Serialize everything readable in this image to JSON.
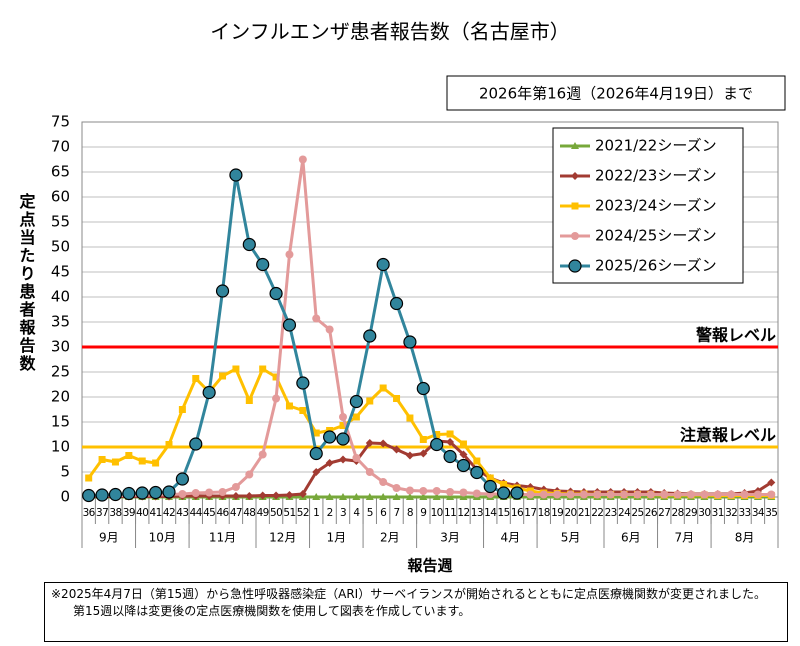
{
  "chart_data": {
    "type": "line",
    "title": "インフルエンザ患者報告数（名古屋市）",
    "subtitle": "2026年第16週（2026年4月19日）まで",
    "y_label": "定点当たり患者報告数",
    "x_label": "報告週",
    "categories": [
      "36",
      "37",
      "38",
      "39",
      "40",
      "41",
      "42",
      "43",
      "44",
      "45",
      "46",
      "47",
      "48",
      "49",
      "50",
      "51",
      "52",
      "1",
      "2",
      "3",
      "4",
      "5",
      "6",
      "7",
      "8",
      "9",
      "10",
      "11",
      "12",
      "13",
      "14",
      "15",
      "16",
      "17",
      "18",
      "19",
      "20",
      "21",
      "22",
      "23",
      "24",
      "25",
      "26",
      "27",
      "28",
      "29",
      "30",
      "31",
      "32",
      "33",
      "34",
      "35"
    ],
    "month_groups": [
      {
        "label": "9月",
        "weeks": 4
      },
      {
        "label": "10月",
        "weeks": 4
      },
      {
        "label": "11月",
        "weeks": 5
      },
      {
        "label": "12月",
        "weeks": 4
      },
      {
        "label": "1月",
        "weeks": 4
      },
      {
        "label": "2月",
        "weeks": 4
      },
      {
        "label": "3月",
        "weeks": 5
      },
      {
        "label": "4月",
        "weeks": 4
      },
      {
        "label": "5月",
        "weeks": 5
      },
      {
        "label": "6月",
        "weeks": 4
      },
      {
        "label": "7月",
        "weeks": 4
      },
      {
        "label": "8月",
        "weeks": 5
      }
    ],
    "ylim": [
      0,
      75
    ],
    "yticks": [
      0,
      5,
      10,
      15,
      20,
      25,
      30,
      35,
      40,
      45,
      50,
      55,
      60,
      65,
      70,
      75
    ],
    "grid": true,
    "legend": "upper right",
    "reference_lines": [
      {
        "label": "警報レベル",
        "value": 30,
        "color": "#ff0000"
      },
      {
        "label": "注意報レベル",
        "value": 10,
        "color": "#ffc000"
      }
    ],
    "series": [
      {
        "name": "2021/22シーズン",
        "color": "#77a83a",
        "marker": "triangle",
        "values": [
          0,
          0,
          0,
          0,
          0,
          0,
          0,
          0,
          0,
          0,
          0,
          0,
          0,
          0,
          0,
          0,
          0,
          0,
          0,
          0,
          0,
          0,
          0,
          0,
          0,
          0,
          0,
          0,
          0,
          0,
          0,
          0,
          0,
          0,
          0,
          0,
          0,
          0,
          0,
          0,
          0,
          0,
          0,
          0,
          0,
          0,
          0,
          0,
          0,
          0,
          0,
          0
        ]
      },
      {
        "name": "2022/23シーズン",
        "color": "#a23b32",
        "marker": "diamond",
        "values": [
          0.1,
          0.1,
          0.1,
          0.1,
          0.1,
          0.1,
          0.1,
          0.2,
          0.2,
          0.2,
          0.2,
          0.2,
          0.2,
          0.3,
          0.3,
          0.4,
          0.6,
          5,
          6.8,
          7.5,
          7.2,
          10.8,
          10.7,
          9.5,
          8.3,
          8.7,
          11.2,
          11,
          8.5,
          5.5,
          3.8,
          2.8,
          2.3,
          2,
          1.5,
          1.2,
          1.1,
          1,
          1,
          1,
          1,
          1,
          1,
          0.8,
          0.7,
          0.6,
          0.6,
          0.6,
          0.6,
          0.8,
          1.2,
          2.9
        ]
      },
      {
        "name": "2023/24シーズン",
        "color": "#ffc000",
        "marker": "square",
        "values": [
          3.8,
          7.5,
          7,
          8.3,
          7.2,
          6.8,
          10.5,
          17.5,
          23.7,
          21,
          24.2,
          25.6,
          19.3,
          25.6,
          24,
          18.2,
          17.3,
          12.8,
          13.3,
          14.3,
          16,
          19.2,
          21.8,
          19.7,
          15.8,
          11.5,
          12.5,
          12.6,
          10.6,
          7.2,
          3.8,
          2.5,
          1.8,
          1.2,
          0.8,
          0.7,
          0.6,
          0.6,
          0.5,
          0.5,
          0.5,
          0.5,
          0.5,
          0.4,
          0.4,
          0.4,
          0.4,
          0.3,
          0.3,
          0.3,
          0.3,
          0.3
        ]
      },
      {
        "name": "2024/25シーズン",
        "color": "#e39a9a",
        "marker": "circle",
        "values": [
          0.3,
          0.3,
          0.3,
          0.3,
          0.4,
          0.4,
          0.5,
          0.6,
          0.8,
          0.9,
          1,
          2,
          4.5,
          8.5,
          19.7,
          48.5,
          67.5,
          35.7,
          33.5,
          16,
          7.8,
          5,
          3,
          1.8,
          1.3,
          1.2,
          1.2,
          1,
          0.9,
          0.7,
          0.6,
          0.6,
          0.5,
          0.5,
          0.5,
          0.5,
          0.5,
          0.5,
          0.5,
          0.5,
          0.5,
          0.5,
          0.5,
          0.5,
          0.5,
          0.5,
          0.5,
          0.5,
          0.5,
          0.5,
          0.5,
          0.5
        ]
      },
      {
        "name": "2025/26シーズン",
        "color": "#31859c",
        "marker": "circle-outlined",
        "values": [
          0.3,
          0.4,
          0.5,
          0.7,
          0.8,
          0.9,
          1,
          3.6,
          10.6,
          20.9,
          41.2,
          64.4,
          50.5,
          46.5,
          40.7,
          34.4,
          22.8,
          8.7,
          12,
          11.6,
          19.1,
          32.2,
          46.5,
          38.7,
          31,
          21.7,
          10.5,
          8.1,
          6.3,
          4.9,
          2.1,
          0.8,
          0.8,
          null,
          null,
          null,
          null,
          null,
          null,
          null,
          null,
          null,
          null,
          null,
          null,
          null,
          null,
          null,
          null,
          null,
          null,
          null
        ]
      }
    ],
    "footnote": [
      "※2025年4月7日（第15週）から急性呼吸器感染症（ARI）サーベイランスが開始されるとともに定点医療機関数が変更されました。",
      "第15週以降は変更後の定点医療機関数を使用して図表を作成しています。"
    ]
  }
}
